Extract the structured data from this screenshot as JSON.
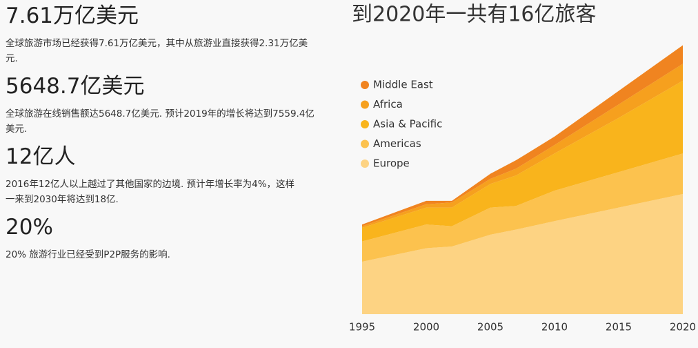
{
  "stats": [
    {
      "heading": "7.61万亿美元",
      "text": "全球旅游市场已经获得7.61万亿美元，其中从旅游业直接获得2.31万亿美元."
    },
    {
      "heading": "5648.7亿美元",
      "text": "全球旅游在线销售额达5648.7亿美元. 预计2019年的增长将达到7559.4亿美元."
    },
    {
      "heading": "12亿人",
      "text": "2016年12亿人以上越过了其他国家的边境. 预计年增长率为4%，这样一来到2030年将达到18亿."
    },
    {
      "heading": "20%",
      "text": "20% 旅游行业已经受到P2P服务的影响."
    }
  ],
  "chart_data": {
    "type": "stacked_area",
    "title": "到2020年一共有16亿旅客",
    "x": [
      1995,
      2000,
      2002,
      2005,
      2007,
      2010,
      2015,
      2020
    ],
    "series": [
      {
        "name": "Europe",
        "color": "#fdd383",
        "values": [
          3.1,
          3.9,
          4.0,
          4.7,
          5.0,
          5.5,
          6.3,
          7.1
        ]
      },
      {
        "name": "Americas",
        "color": "#fcc24e",
        "values": [
          1.2,
          1.4,
          1.2,
          1.6,
          1.4,
          1.8,
          2.1,
          2.4
        ]
      },
      {
        "name": "Asia & Pacific",
        "color": "#f9b41c",
        "values": [
          0.8,
          1.0,
          1.1,
          1.4,
          1.8,
          2.2,
          3.2,
          4.3
        ]
      },
      {
        "name": "Africa",
        "color": "#f6a01e",
        "values": [
          0.1,
          0.2,
          0.3,
          0.3,
          0.4,
          0.5,
          0.8,
          1.0
        ]
      },
      {
        "name": "Middle East",
        "color": "#f08420",
        "values": [
          0.1,
          0.2,
          0.1,
          0.3,
          0.5,
          0.5,
          0.8,
          1.1
        ]
      }
    ],
    "xlim": [
      1995,
      2020
    ],
    "xticks": [
      1995,
      2000,
      2005,
      2010,
      2015,
      2020
    ],
    "ylim": [
      0,
      16
    ]
  }
}
